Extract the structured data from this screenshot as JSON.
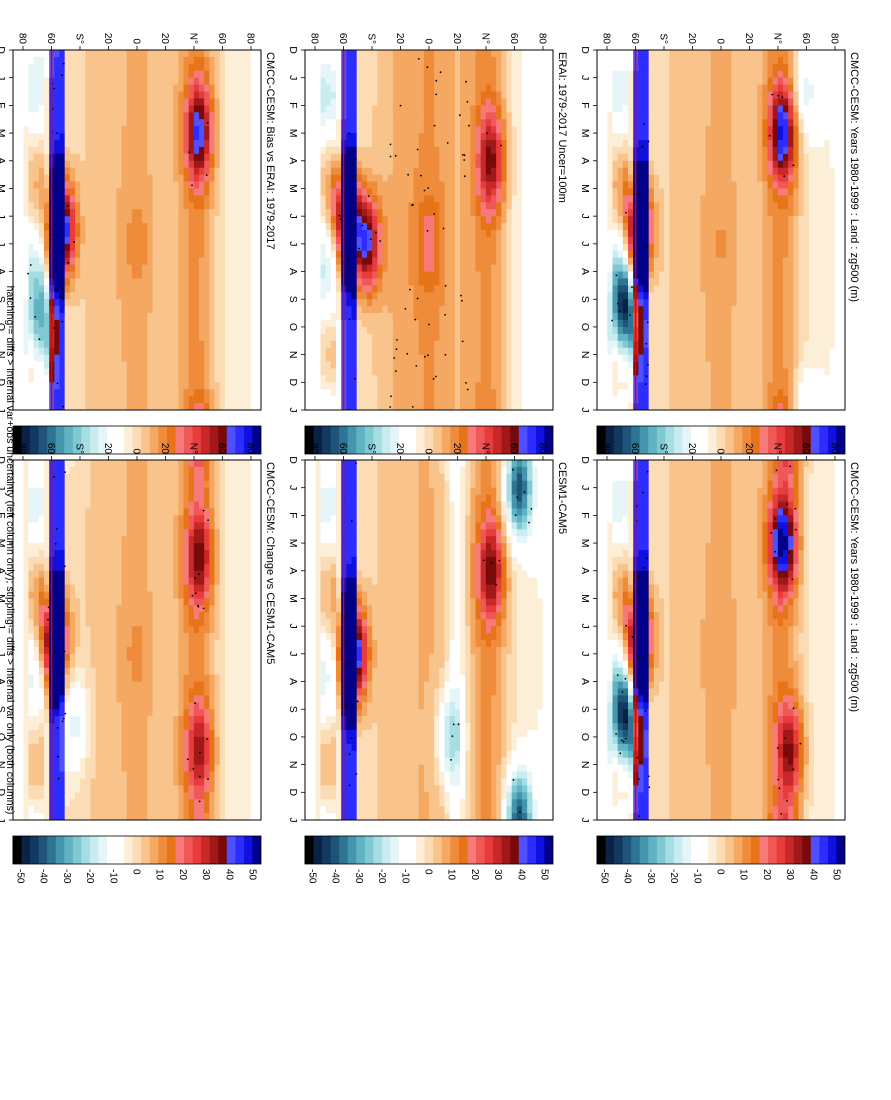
{
  "figure": {
    "footer": "hatching = diffs > internal var+obs uncertainty (left column only); stippling = diffs > internal var only (both columns)"
  },
  "panel_titles": [
    "CMCC-CESM: Years 1980-1999 : Land : zg500 (m)",
    "CMCC-CESM: Years 1980-1999 : Land : zg500 (m)",
    "ERAI: 1979-2017 Uncer=100m",
    "CESM1-CAM5",
    "CMCC-CESM: Bias vs ERAI: 1979-2017",
    "CMCC-CESM: Change vs CESM1-CAM5"
  ],
  "month_labels": [
    "D",
    "J",
    "F",
    "M",
    "A",
    "M",
    "J",
    "J",
    "A",
    "S",
    "O",
    "N",
    "D",
    "J"
  ],
  "lat_labels": [
    "80",
    "60",
    "N°",
    "20",
    "0",
    "20",
    "S°",
    "60",
    "80"
  ],
  "colorbar": {
    "tick_labels": [
      "50",
      "40",
      "30",
      "20",
      "10",
      "0",
      "-10",
      "-20",
      "-30",
      "-40",
      "-50"
    ],
    "colors": [
      "#00008a",
      "#1010e0",
      "#2d2dff",
      "#5050ff",
      "#7a0a0a",
      "#a01818",
      "#c82828",
      "#e83c3c",
      "#f05858",
      "#f77a7a",
      "#e8741a",
      "#ef8c3c",
      "#f4a862",
      "#f8c48c",
      "#fbdcb4",
      "#fdeed8",
      "#ffffff",
      "#ffffff",
      "#e6f6f8",
      "#c8ecef",
      "#a4dde2",
      "#80c9d2",
      "#5fb3c2",
      "#4595ac",
      "#2e7594",
      "#1e547a",
      "#123a60",
      "#0a2248",
      "#000000"
    ]
  },
  "chart_data": [
    {
      "type": "heatmap",
      "title": "CMCC-CESM: Years 1980-1999 : Land : zg500 (m)",
      "x": "months D..J",
      "y": "latitude 90S..90N",
      "zlim": [
        -55,
        55
      ],
      "units": "m",
      "features": [
        {
          "lat": 45,
          "month": 3.0,
          "value": 40
        },
        {
          "lat": 60,
          "month": 1.5,
          "value": -15
        },
        {
          "lat": -60,
          "month": 6.5,
          "value": 50
        },
        {
          "lat": -70,
          "month": 9.5,
          "value": -45
        },
        {
          "lat": 0,
          "month": 7.0,
          "value": 4
        }
      ]
    },
    {
      "type": "heatmap",
      "title": "CMCC-CESM: Years 1980-1999 : Land : zg500 (m)",
      "x": "months D..J",
      "y": "latitude 90S..90N",
      "zlim": [
        -55,
        55
      ],
      "units": "m",
      "features": [
        {
          "lat": 45,
          "month": 3.0,
          "value": 45
        },
        {
          "lat": 50,
          "month": 10.5,
          "value": 30
        },
        {
          "lat": -60,
          "month": 6.5,
          "value": 50
        },
        {
          "lat": -70,
          "month": 9.5,
          "value": -45
        },
        {
          "lat": 0,
          "month": 7.0,
          "value": 3
        }
      ]
    },
    {
      "type": "heatmap",
      "title": "ERAI: 1979-2017 Uncer=100m",
      "x": "months D..J",
      "y": "latitude 90S..90N",
      "zlim": [
        -55,
        55
      ],
      "units": "m",
      "features": [
        {
          "lat": 45,
          "month": 4.0,
          "value": 28
        },
        {
          "lat": -45,
          "month": 7.0,
          "value": 40
        },
        {
          "lat": -60,
          "month": 6.0,
          "value": 50
        },
        {
          "lat": 0,
          "month": 7.0,
          "value": 10
        }
      ]
    },
    {
      "type": "heatmap",
      "title": "CESM1-CAM5",
      "x": "months D..J",
      "y": "latitude 90S..90N",
      "zlim": [
        -55,
        55
      ],
      "units": "m",
      "features": [
        {
          "lat": 65,
          "month": 1.0,
          "value": -40
        },
        {
          "lat": 45,
          "month": 4.0,
          "value": 30
        },
        {
          "lat": -55,
          "month": 7.0,
          "value": 55
        },
        {
          "lat": 15,
          "month": 10.0,
          "value": -20
        }
      ]
    },
    {
      "type": "heatmap",
      "title": "CMCC-CESM: Bias vs ERAI: 1979-2017",
      "x": "months D..J",
      "y": "latitude 90S..90N",
      "zlim": [
        -55,
        55
      ],
      "units": "m",
      "features": [
        {
          "lat": 45,
          "month": 3.0,
          "value": 35
        },
        {
          "lat": -55,
          "month": 6.5,
          "value": 55
        },
        {
          "lat": -70,
          "month": 10.0,
          "value": -30
        },
        {
          "lat": 0,
          "month": 7.0,
          "value": 6
        }
      ]
    },
    {
      "type": "heatmap",
      "title": "CMCC-CESM: Change vs CESM1-CAM5",
      "x": "months D..J",
      "y": "latitude 90S..90N",
      "zlim": [
        -55,
        55
      ],
      "units": "m",
      "features": [
        {
          "lat": 45,
          "month": 3.5,
          "value": 30
        },
        {
          "lat": 45,
          "month": 10.5,
          "value": 25
        },
        {
          "lat": -60,
          "month": 6.5,
          "value": 50
        },
        {
          "lat": -45,
          "month": 9.5,
          "value": -15
        },
        {
          "lat": 0,
          "month": 7.0,
          "value": 5
        }
      ]
    }
  ]
}
